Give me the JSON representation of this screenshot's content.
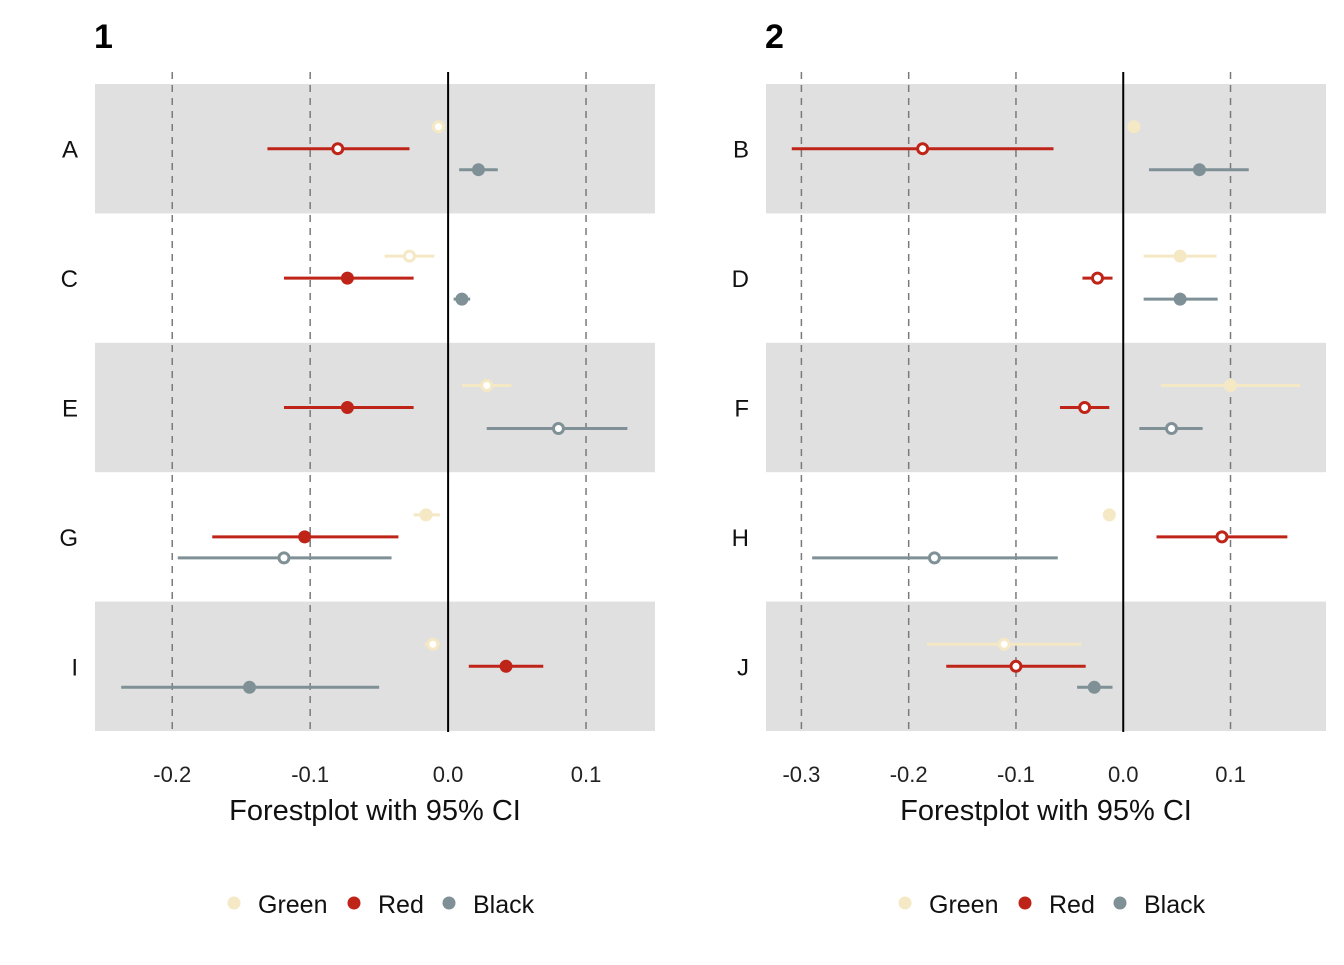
{
  "legend": {
    "items": [
      {
        "label": "Green",
        "color": "#F5E8C4"
      },
      {
        "label": "Red",
        "color": "#BF2418"
      },
      {
        "label": "Black",
        "color": "#7F9196"
      }
    ]
  },
  "chart_data": [
    {
      "type": "forestplot",
      "panel_label": "1",
      "xlabel": "Forestplot with 95% CI",
      "xlim": [
        -0.256,
        0.15
      ],
      "xticks": [
        -0.2,
        -0.1,
        0.0,
        0.1
      ],
      "xtick_labels": [
        "-0.2",
        "-0.1",
        "0.0",
        "0.1"
      ],
      "gridlines_dashed": [
        -0.2,
        -0.1,
        0.1
      ],
      "reference_line": 0.0,
      "categories": [
        "A",
        "C",
        "E",
        "G",
        "I"
      ],
      "shaded_rows": [
        "A",
        "E",
        "I"
      ],
      "series": [
        {
          "name": "Green",
          "color": "#F5E8C4",
          "points": [
            {
              "category": "A",
              "estimate": -0.007,
              "lower": -0.007,
              "upper": -0.007,
              "filled": false
            },
            {
              "category": "C",
              "estimate": -0.028,
              "lower": -0.046,
              "upper": -0.01,
              "filled": false
            },
            {
              "category": "E",
              "estimate": 0.028,
              "lower": 0.01,
              "upper": 0.046,
              "filled": false
            },
            {
              "category": "G",
              "estimate": -0.016,
              "lower": -0.025,
              "upper": -0.006,
              "filled": true
            },
            {
              "category": "I",
              "estimate": -0.011,
              "lower": -0.017,
              "upper": -0.006,
              "filled": false
            }
          ]
        },
        {
          "name": "Red",
          "color": "#BF2418",
          "points": [
            {
              "category": "A",
              "estimate": -0.08,
              "lower": -0.131,
              "upper": -0.028,
              "filled": false
            },
            {
              "category": "C",
              "estimate": -0.073,
              "lower": -0.119,
              "upper": -0.025,
              "filled": true
            },
            {
              "category": "E",
              "estimate": -0.073,
              "lower": -0.119,
              "upper": -0.025,
              "filled": true
            },
            {
              "category": "G",
              "estimate": -0.104,
              "lower": -0.171,
              "upper": -0.036,
              "filled": true
            },
            {
              "category": "I",
              "estimate": 0.042,
              "lower": 0.015,
              "upper": 0.069,
              "filled": true
            }
          ]
        },
        {
          "name": "Black",
          "color": "#7F9196",
          "points": [
            {
              "category": "A",
              "estimate": 0.022,
              "lower": 0.008,
              "upper": 0.036,
              "filled": true
            },
            {
              "category": "C",
              "estimate": 0.01,
              "lower": 0.004,
              "upper": 0.016,
              "filled": true
            },
            {
              "category": "E",
              "estimate": 0.08,
              "lower": 0.028,
              "upper": 0.13,
              "filled": false
            },
            {
              "category": "G",
              "estimate": -0.119,
              "lower": -0.196,
              "upper": -0.041,
              "filled": false
            },
            {
              "category": "I",
              "estimate": -0.144,
              "lower": -0.237,
              "upper": -0.05,
              "filled": true
            }
          ]
        }
      ]
    },
    {
      "type": "forestplot",
      "panel_label": "2",
      "xlabel": "Forestplot with 95% CI",
      "xlim": [
        -0.333,
        0.189
      ],
      "xticks": [
        -0.3,
        -0.2,
        -0.1,
        0.0,
        0.1
      ],
      "xtick_labels": [
        "-0.3",
        "-0.2",
        "-0.1",
        "0.0",
        "0.1"
      ],
      "gridlines_dashed": [
        -0.3,
        -0.2,
        -0.1,
        0.1
      ],
      "reference_line": 0.0,
      "categories": [
        "B",
        "D",
        "F",
        "H",
        "J"
      ],
      "shaded_rows": [
        "B",
        "F",
        "J"
      ],
      "series": [
        {
          "name": "Green",
          "color": "#F5E8C4",
          "points": [
            {
              "category": "B",
              "estimate": 0.01,
              "lower": 0.01,
              "upper": 0.01,
              "filled": true
            },
            {
              "category": "D",
              "estimate": 0.053,
              "lower": 0.019,
              "upper": 0.087,
              "filled": true
            },
            {
              "category": "F",
              "estimate": 0.1,
              "lower": 0.035,
              "upper": 0.165,
              "filled": true
            },
            {
              "category": "H",
              "estimate": -0.013,
              "lower": -0.018,
              "upper": -0.008,
              "filled": true
            },
            {
              "category": "J",
              "estimate": -0.111,
              "lower": -0.183,
              "upper": -0.039,
              "filled": false
            }
          ]
        },
        {
          "name": "Red",
          "color": "#BF2418",
          "points": [
            {
              "category": "B",
              "estimate": -0.187,
              "lower": -0.309,
              "upper": -0.065,
              "filled": false
            },
            {
              "category": "D",
              "estimate": -0.024,
              "lower": -0.038,
              "upper": -0.01,
              "filled": false
            },
            {
              "category": "F",
              "estimate": -0.036,
              "lower": -0.059,
              "upper": -0.013,
              "filled": false
            },
            {
              "category": "H",
              "estimate": 0.092,
              "lower": 0.031,
              "upper": 0.153,
              "filled": false
            },
            {
              "category": "J",
              "estimate": -0.1,
              "lower": -0.165,
              "upper": -0.035,
              "filled": false
            }
          ]
        },
        {
          "name": "Black",
          "color": "#7F9196",
          "points": [
            {
              "category": "B",
              "estimate": 0.071,
              "lower": 0.024,
              "upper": 0.117,
              "filled": true
            },
            {
              "category": "D",
              "estimate": 0.053,
              "lower": 0.019,
              "upper": 0.088,
              "filled": true
            },
            {
              "category": "F",
              "estimate": 0.045,
              "lower": 0.015,
              "upper": 0.074,
              "filled": false
            },
            {
              "category": "H",
              "estimate": -0.176,
              "lower": -0.29,
              "upper": -0.061,
              "filled": false
            },
            {
              "category": "J",
              "estimate": -0.027,
              "lower": -0.043,
              "upper": -0.01,
              "filled": true
            }
          ]
        }
      ]
    }
  ]
}
